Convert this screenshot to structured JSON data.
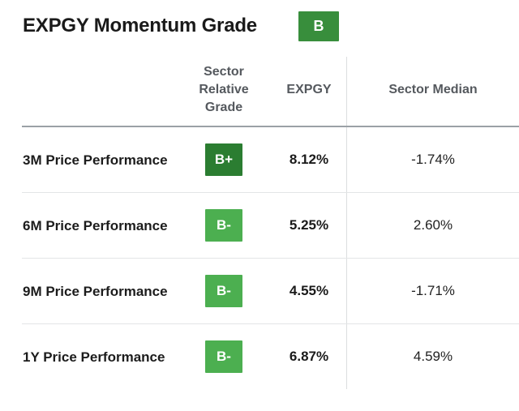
{
  "title": "EXPGY Momentum Grade",
  "overall_grade": {
    "label": "B",
    "color": "#388e3c"
  },
  "table": {
    "headers": {
      "grade": "Sector Relative Grade",
      "expgy": "EXPGY",
      "sector_median": "Sector Median"
    },
    "rows": [
      {
        "label": "3M Price Performance",
        "grade": "B+",
        "grade_color": "#2b7d31",
        "expgy": "8.12%",
        "sector_median": "-1.74%"
      },
      {
        "label": "6M Price Performance",
        "grade": "B-",
        "grade_color": "#4caf50",
        "expgy": "5.25%",
        "sector_median": "2.60%"
      },
      {
        "label": "9M Price Performance",
        "grade": "B-",
        "grade_color": "#4caf50",
        "expgy": "4.55%",
        "sector_median": "-1.71%"
      },
      {
        "label": "1Y Price Performance",
        "grade": "B-",
        "grade_color": "#4caf50",
        "expgy": "6.87%",
        "sector_median": "4.59%"
      }
    ]
  },
  "colors": {
    "header_text": "#55595e",
    "header_rule": "#9ba1a6",
    "row_separator": "#e3e5e6",
    "column_divider": "#dcdedf"
  }
}
